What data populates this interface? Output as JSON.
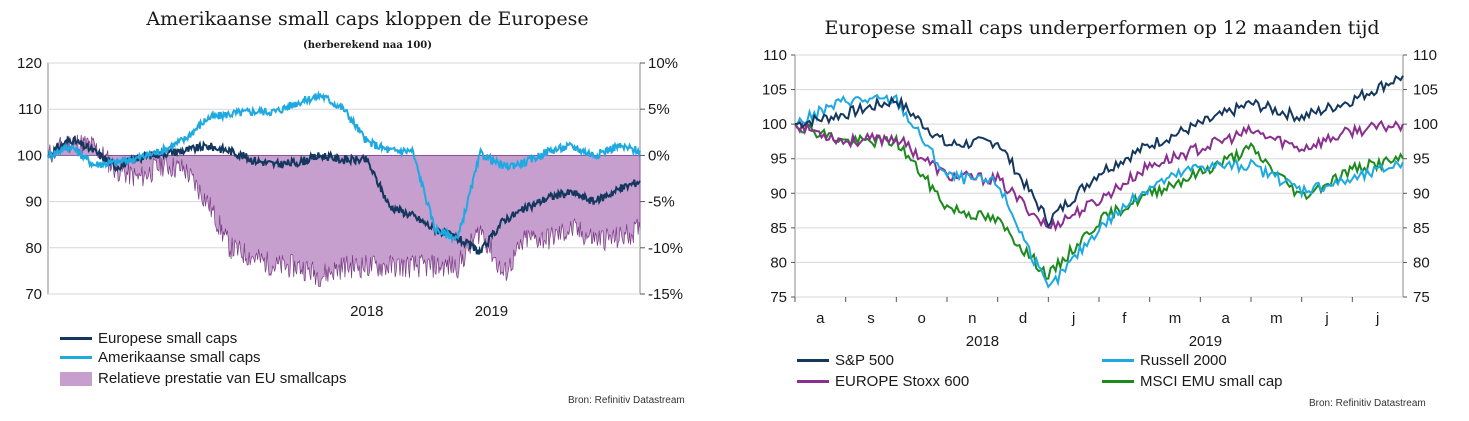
{
  "chart_data": [
    {
      "type": "line",
      "title": "Amerikaanse small caps kloppen de Europese",
      "subtitle": "(herberekend naa 100)",
      "x_tick_labels": [
        "2018",
        "2019"
      ],
      "y_left_ticks": [
        "120",
        "110",
        "100",
        "90",
        "80",
        "70"
      ],
      "y_right_ticks": [
        "10%",
        "5%",
        "0%",
        "-5%",
        "-10%",
        "-15%"
      ],
      "ylim_left": [
        70,
        120
      ],
      "ylim_right": [
        -15,
        10
      ],
      "x_period": [
        "2017-05",
        "2019-07"
      ],
      "legend": [
        "Europese small caps",
        "Amerikaanse small caps",
        "Relatieve prestatie van EU smallcaps"
      ],
      "colors": {
        "europe": "#14375e",
        "us": "#1fa9e1",
        "relative": "#c79fcf",
        "relative_edge": "#7a3a85"
      },
      "x": [
        "2017-05",
        "2017-06",
        "2017-07",
        "2017-08",
        "2017-09",
        "2017-10",
        "2017-11",
        "2017-12",
        "2018-01",
        "2018-02",
        "2018-03",
        "2018-04",
        "2018-05",
        "2018-06",
        "2018-07",
        "2018-08",
        "2018-09",
        "2018-10",
        "2018-11",
        "2018-12",
        "2019-01",
        "2019-02",
        "2019-03",
        "2019-04",
        "2019-05",
        "2019-06",
        "2019-07"
      ],
      "series": [
        {
          "name": "Europese small caps",
          "values": [
            100,
            103.5,
            101,
            97.5,
            99.5,
            100.5,
            101,
            102,
            101,
            99,
            98,
            98.5,
            100,
            99,
            99,
            89,
            87,
            84,
            82,
            79,
            86,
            88.5,
            91,
            92,
            90,
            92.5,
            94.5
          ]
        },
        {
          "name": "Amerikaanse small caps",
          "values": [
            100,
            102,
            98,
            98.5,
            99.5,
            101,
            103.5,
            108,
            109,
            109.5,
            109.5,
            111.5,
            113,
            110,
            103,
            101,
            101,
            84,
            82,
            100.5,
            97.5,
            98.5,
            101,
            102,
            100,
            102,
            101
          ]
        },
        {
          "name": "Relatieve prestatie van EU smallcaps",
          "values": [
            0,
            1.5,
            1,
            -1.5,
            -2.5,
            -1,
            -1.5,
            -5,
            -10,
            -11,
            -12,
            -12,
            -13,
            -12,
            -12,
            -12,
            -12,
            -12,
            -12,
            -8,
            -13,
            -9,
            -9,
            -8,
            -9,
            -9,
            -8
          ]
        }
      ],
      "source": "Bron: Refinitiv Datastream"
    },
    {
      "type": "line",
      "title": "Europese small caps underperformen op 12 maanden tijd",
      "x_tick_labels": [
        "a",
        "s",
        "o",
        "n",
        "d",
        "j",
        "f",
        "m",
        "a",
        "m",
        "j",
        "j"
      ],
      "x_year_labels": [
        "2018",
        "2019"
      ],
      "y_ticks": [
        "110",
        "105",
        "100",
        "95",
        "90",
        "85",
        "80",
        "75"
      ],
      "ylim": [
        75,
        110
      ],
      "x": [
        "2018-07",
        "2018-08",
        "2018-09",
        "2018-10",
        "2018-11",
        "2018-12",
        "2019-01",
        "2019-02",
        "2019-03",
        "2019-04",
        "2019-05",
        "2019-06",
        "2019-07"
      ],
      "legend": [
        "S&P 500",
        "Russell 2000",
        "EUROPE Stoxx 600",
        "MSCI EMU small cap"
      ],
      "colors": {
        "sp500": "#14375e",
        "russell": "#1fa9e1",
        "stoxx": "#8a2f8f",
        "msci": "#1d8a1d"
      },
      "series": [
        {
          "name": "S&P 500",
          "values": [
            100,
            101.5,
            103.5,
            97,
            97.5,
            86,
            93,
            97,
            100,
            103,
            101,
            103.5,
            107
          ]
        },
        {
          "name": "Russell 2000",
          "values": [
            100,
            103.5,
            103.5,
            92.5,
            91.5,
            76,
            85,
            91,
            94,
            94,
            90.5,
            92,
            94.5
          ]
        },
        {
          "name": "EUROPE Stoxx 600",
          "values": [
            100,
            97.5,
            98,
            92.5,
            92,
            85,
            89,
            94,
            96.5,
            99,
            96.5,
            99,
            100
          ]
        },
        {
          "name": "MSCI EMU small cap",
          "values": [
            100,
            97.5,
            97.5,
            88,
            86,
            78,
            86,
            90,
            93,
            96.5,
            89.5,
            93.5,
            95
          ]
        }
      ],
      "source": "Bron: Refinitiv Datastream"
    }
  ]
}
